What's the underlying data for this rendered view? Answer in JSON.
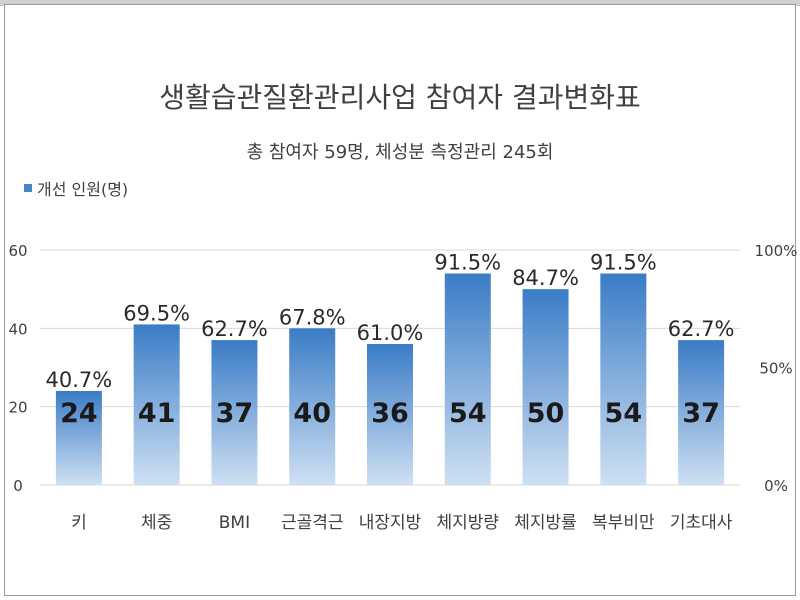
{
  "chart_data": {
    "type": "bar",
    "title": "생활습관질환관리사업 참여자 결과변화표",
    "subtitle": "총 참여자 59명, 체성분 측정관리 245회",
    "legend": {
      "label": "개선 인원(명)",
      "position": "top-left"
    },
    "categories": [
      "키",
      "체중",
      "BMI",
      "근골격근",
      "내장지방",
      "체지방량",
      "체지방률",
      "복부비만",
      "기초대사"
    ],
    "series": [
      {
        "name": "개선 인원(명)",
        "values": [
          24,
          41,
          37,
          40,
          36,
          54,
          50,
          54,
          37
        ],
        "percent_labels": [
          "40.7%",
          "69.5%",
          "62.7%",
          "67.8%",
          "61.0%",
          "91.5%",
          "84.7%",
          "91.5%",
          "62.7%"
        ]
      }
    ],
    "ylim": [
      0,
      60
    ],
    "yticks": [
      0,
      20,
      40,
      60
    ],
    "y2lim": [
      0,
      100
    ],
    "y2ticks": [
      "0%",
      "50%",
      "100%"
    ],
    "grid": true,
    "colors": {
      "bar_top": "#3a7cc6",
      "bar_bottom": "#cfe0f3",
      "grid": "#d9d9d9",
      "text": "#404040"
    }
  }
}
